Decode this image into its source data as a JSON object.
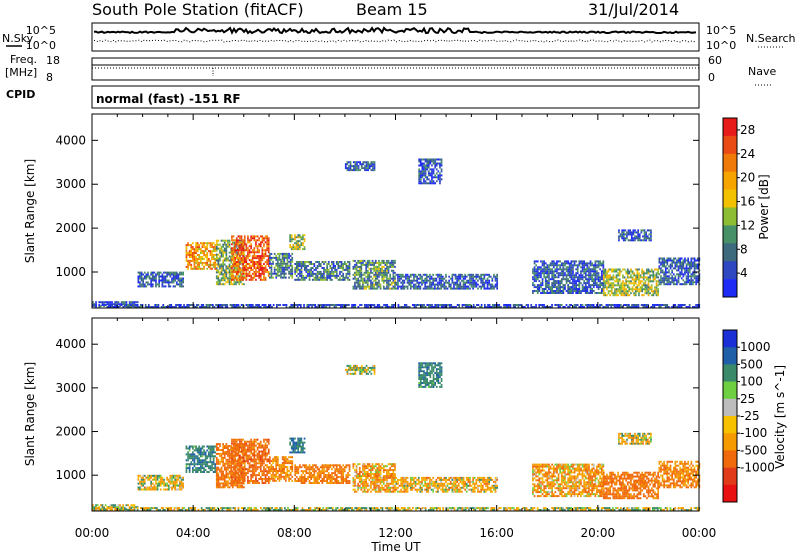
{
  "header": {
    "station": "South Pole Station (fitACF)",
    "beam": "Beam 15",
    "date": "31/Jul/2014"
  },
  "side_labels": {
    "nsky": "N.Sky",
    "nsearch": "N.Search",
    "freq_line1": "Freq.",
    "freq_line2": "[MHz]",
    "nave": "Nave",
    "cpid": "CPID"
  },
  "noise_panel": {
    "left_ticks": [
      "10^5",
      "10^0"
    ],
    "right_ticks": [
      "10^5",
      "10^0"
    ]
  },
  "freq_panel": {
    "left_ticks": [
      "18",
      "8"
    ],
    "right_ticks": [
      "60",
      "0"
    ]
  },
  "cpid_panel": {
    "label": "normal (fast) -151 RF"
  },
  "chart_data": [
    {
      "type": "heatmap",
      "title": "Power",
      "ylabel": "Slant Range [km]",
      "xlabel": "",
      "x_ticks": [
        "00:00",
        "04:00",
        "08:00",
        "12:00",
        "16:00",
        "20:00",
        "00:00"
      ],
      "x_range_hours": [
        0,
        24
      ],
      "y_ticks": [
        1000,
        2000,
        3000,
        4000
      ],
      "ylim": [
        180,
        4600
      ],
      "colorbar": {
        "label": "Power [dB]",
        "ticks": [
          "4",
          "8",
          "12",
          "16",
          "20",
          "24",
          "28"
        ],
        "colors": [
          "#1e2bf5",
          "#2f47c0",
          "#3e6a7e",
          "#489068",
          "#8dbd32",
          "#f2c200",
          "#f5a400",
          "#f07a08",
          "#ea4a14",
          "#e81b1b"
        ],
        "range": [
          0,
          30
        ]
      },
      "regions": [
        {
          "t0": 0.0,
          "t1": 1.8,
          "r0": 200,
          "r1": 320,
          "v": 5
        },
        {
          "t0": 1.8,
          "t1": 3.6,
          "r0": 650,
          "r1": 1000,
          "v": 6
        },
        {
          "t0": 3.7,
          "t1": 4.9,
          "r0": 1050,
          "r1": 1650,
          "v": 20
        },
        {
          "t0": 4.9,
          "t1": 6.0,
          "r0": 700,
          "r1": 1700,
          "v": 12
        },
        {
          "t0": 5.5,
          "t1": 7.0,
          "r0": 800,
          "r1": 1800,
          "v": 24
        },
        {
          "t0": 7.0,
          "t1": 7.9,
          "r0": 850,
          "r1": 1400,
          "v": 8
        },
        {
          "t0": 7.8,
          "t1": 8.4,
          "r0": 1500,
          "r1": 1850,
          "v": 14
        },
        {
          "t0": 8.0,
          "t1": 10.2,
          "r0": 800,
          "r1": 1250,
          "v": 8
        },
        {
          "t0": 10.3,
          "t1": 12.0,
          "r0": 600,
          "r1": 1250,
          "v": 10
        },
        {
          "t0": 12.0,
          "t1": 16.0,
          "r0": 600,
          "r1": 950,
          "v": 6
        },
        {
          "t0": 10.0,
          "t1": 11.2,
          "r0": 3300,
          "r1": 3500,
          "v": 5
        },
        {
          "t0": 12.9,
          "t1": 13.8,
          "r0": 3000,
          "r1": 3550,
          "v": 5
        },
        {
          "t0": 17.4,
          "t1": 20.2,
          "r0": 500,
          "r1": 1250,
          "v": 6
        },
        {
          "t0": 20.2,
          "t1": 22.4,
          "r0": 450,
          "r1": 1050,
          "v": 14
        },
        {
          "t0": 22.4,
          "t1": 24.0,
          "r0": 700,
          "r1": 1300,
          "v": 6
        },
        {
          "t0": 20.8,
          "t1": 22.1,
          "r0": 1700,
          "r1": 1950,
          "v": 5
        },
        {
          "t0": 0.0,
          "t1": 24.0,
          "r0": 180,
          "r1": 260,
          "v": 4
        }
      ]
    },
    {
      "type": "heatmap",
      "title": "Velocity",
      "ylabel": "Slant Range [km]",
      "xlabel": "Time UT",
      "x_ticks": [
        "00:00",
        "04:00",
        "08:00",
        "12:00",
        "16:00",
        "20:00",
        "00:00"
      ],
      "x_range_hours": [
        0,
        24
      ],
      "y_ticks": [
        1000,
        2000,
        3000,
        4000
      ],
      "ylim": [
        180,
        4600
      ],
      "colorbar": {
        "label": "Velocity [m s^-1]",
        "ticks": [
          "1000",
          "500",
          "100",
          "25",
          "-25",
          "-100",
          "-500",
          "-1000"
        ],
        "colors": [
          "#1a2fd6",
          "#1e5fa8",
          "#3a8a6a",
          "#6ed040",
          "#bdbdbd",
          "#f7c100",
          "#f59a00",
          "#f06a0c",
          "#e03a18",
          "#e81010"
        ],
        "range": [
          -1200,
          1200
        ]
      },
      "regions": [
        {
          "t0": 0.0,
          "t1": 1.8,
          "r0": 200,
          "r1": 320,
          "v": 0
        },
        {
          "t0": 1.8,
          "t1": 3.6,
          "r0": 650,
          "r1": 1000,
          "v": -60
        },
        {
          "t0": 3.7,
          "t1": 4.9,
          "r0": 1050,
          "r1": 1650,
          "v": 300
        },
        {
          "t0": 4.9,
          "t1": 6.0,
          "r0": 700,
          "r1": 1700,
          "v": -400
        },
        {
          "t0": 5.5,
          "t1": 7.0,
          "r0": 800,
          "r1": 1800,
          "v": -500
        },
        {
          "t0": 7.0,
          "t1": 7.9,
          "r0": 850,
          "r1": 1400,
          "v": -300
        },
        {
          "t0": 7.8,
          "t1": 8.4,
          "r0": 1500,
          "r1": 1850,
          "v": 400
        },
        {
          "t0": 8.0,
          "t1": 10.2,
          "r0": 800,
          "r1": 1250,
          "v": -350
        },
        {
          "t0": 10.3,
          "t1": 12.0,
          "r0": 600,
          "r1": 1250,
          "v": -200
        },
        {
          "t0": 12.0,
          "t1": 16.0,
          "r0": 600,
          "r1": 950,
          "v": -120
        },
        {
          "t0": 10.0,
          "t1": 11.2,
          "r0": 3300,
          "r1": 3500,
          "v": 0
        },
        {
          "t0": 12.9,
          "t1": 13.8,
          "r0": 3000,
          "r1": 3550,
          "v": 300
        },
        {
          "t0": 17.4,
          "t1": 20.2,
          "r0": 500,
          "r1": 1250,
          "v": -200
        },
        {
          "t0": 20.2,
          "t1": 22.4,
          "r0": 450,
          "r1": 1050,
          "v": -450
        },
        {
          "t0": 22.4,
          "t1": 24.0,
          "r0": 700,
          "r1": 1300,
          "v": -300
        },
        {
          "t0": 20.8,
          "t1": 22.1,
          "r0": 1700,
          "r1": 1950,
          "v": -80
        },
        {
          "t0": 0.0,
          "t1": 24.0,
          "r0": 180,
          "r1": 260,
          "v": 0
        }
      ]
    }
  ]
}
